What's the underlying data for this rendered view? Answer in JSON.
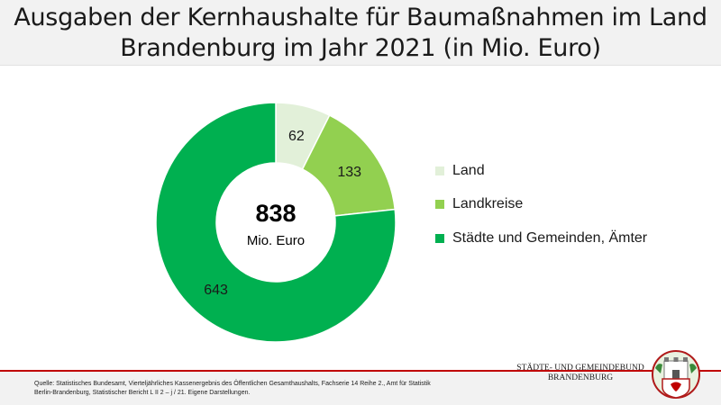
{
  "header": {
    "title_line1": "Ausgaben der Kernhaushalte für Baumaßnahmen im Land",
    "title_line2": "Brandenburg im Jahr 2021 (in Mio. Euro)"
  },
  "chart_data": {
    "type": "pie",
    "variant": "donut",
    "categories": [
      "Land",
      "Landkreise",
      "Städte und Gemeinden, Ämter"
    ],
    "values": [
      62,
      133,
      643
    ],
    "colors": [
      "#e2f0d9",
      "#92d050",
      "#00b050"
    ],
    "data_labels": [
      "62",
      "133",
      "643"
    ],
    "center_value": "838",
    "center_unit": "Mio. Euro",
    "legend_position": "right"
  },
  "footer": {
    "source_line1": "Quelle: Statistisches Bundesamt, Vierteljährliches Kassenergebnis des Öffentlichen Gesamthaushalts, Fachserie 14 Reihe 2., Amt für Statistik",
    "source_line2": "Berlin-Brandenburg, Statistischer Bericht L II 2 – j / 21. Eigene Darstellungen.",
    "org_line1": "STÄDTE- UND GEMEINDEBUND",
    "org_line2": "BRANDENBURG",
    "accent_color": "#c00000"
  },
  "icons": {
    "logo": "coat-of-arms-icon"
  }
}
